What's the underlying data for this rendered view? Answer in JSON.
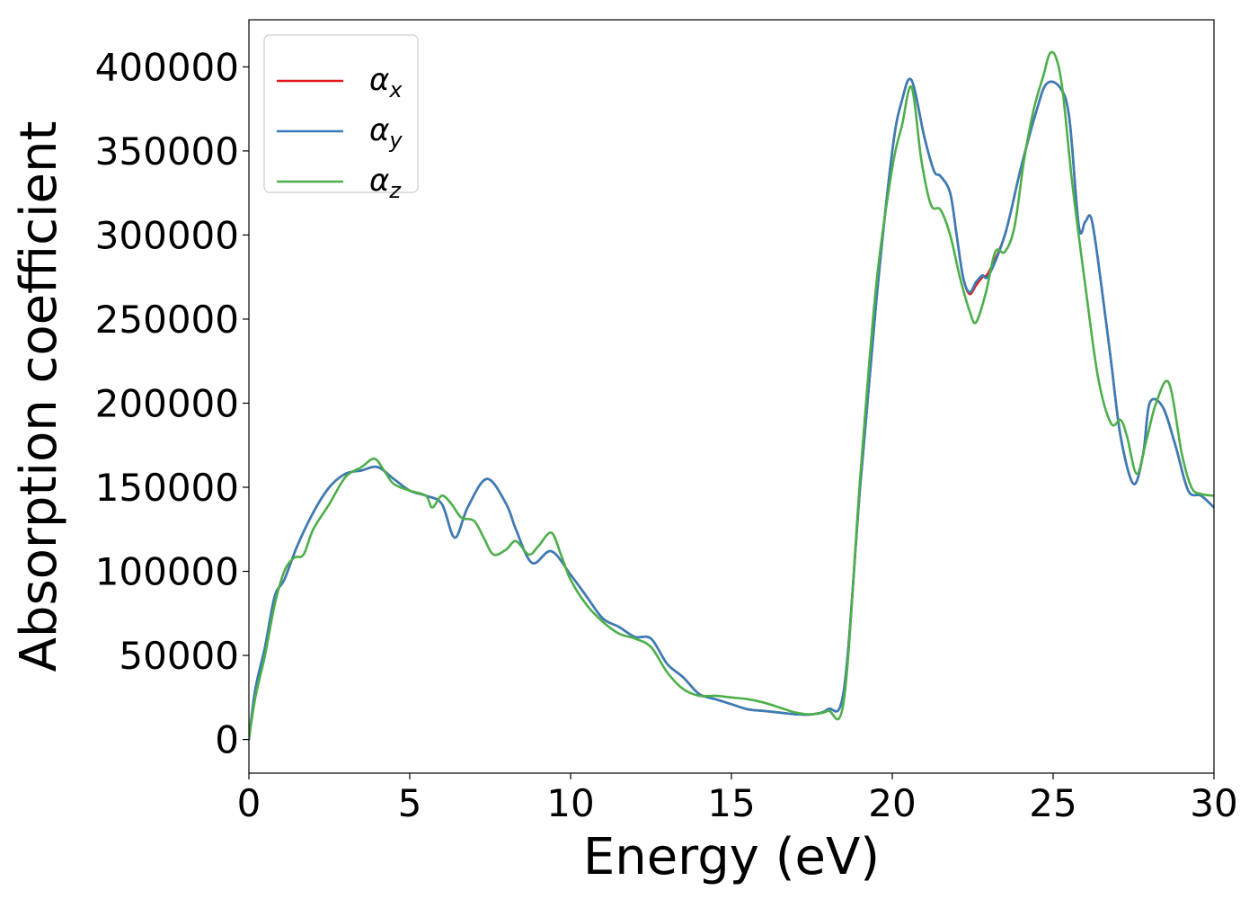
{
  "chart_data": {
    "type": "line",
    "title": "",
    "xlabel": "Energy (eV)",
    "ylabel": "Absorption coefficient",
    "xlim": [
      0,
      30
    ],
    "ylim": [
      -20000,
      428000
    ],
    "xticks": [
      0,
      5,
      10,
      15,
      20,
      25,
      30
    ],
    "xtick_labels": [
      "0",
      "5",
      "10",
      "15",
      "20",
      "25",
      "30"
    ],
    "yticks": [
      0,
      50000,
      100000,
      150000,
      200000,
      250000,
      300000,
      350000,
      400000
    ],
    "ytick_labels": [
      "0",
      "50000",
      "100000",
      "150000",
      "200000",
      "250000",
      "300000",
      "350000",
      "400000"
    ],
    "grid": false,
    "legend_position": "top-left",
    "series": [
      {
        "name": "α_x",
        "label_main": "α",
        "label_sub": "x",
        "color": "#e41a1c",
        "x": [
          0,
          0.2,
          0.5,
          0.8,
          1.1,
          1.5,
          2,
          2.5,
          3,
          3.5,
          4,
          4.5,
          5,
          5.5,
          6,
          6.4,
          6.8,
          7.4,
          8,
          8.3,
          8.8,
          9.4,
          10,
          10.5,
          11,
          11.5,
          12,
          12.5,
          13,
          13.5,
          14,
          14.5,
          15,
          15.5,
          16,
          16.5,
          17,
          17.5,
          18,
          18.5,
          19,
          19.5,
          20,
          20.3,
          20.6,
          21,
          21.3,
          21.5,
          21.8,
          22,
          22.2,
          22.4,
          22.6,
          22.8,
          23,
          23.5,
          24,
          24.5,
          24.8,
          25.2,
          25.5,
          25.8,
          26,
          26.2,
          26.5,
          26.8,
          27.1,
          27.5,
          27.8,
          28,
          28.4,
          28.8,
          29.2,
          29.6,
          30
        ],
        "y": [
          0,
          30000,
          55000,
          85000,
          95000,
          115000,
          135000,
          150000,
          158000,
          160000,
          162000,
          155000,
          148000,
          145000,
          140000,
          120000,
          138000,
          155000,
          140000,
          125000,
          105000,
          112000,
          98000,
          85000,
          72000,
          67000,
          61000,
          60000,
          45000,
          37000,
          27000,
          24000,
          21000,
          18000,
          17000,
          16000,
          15000,
          15000,
          18000,
          30000,
          150000,
          260000,
          350000,
          380000,
          392000,
          358000,
          338000,
          335000,
          325000,
          300000,
          275000,
          265000,
          270000,
          275000,
          278000,
          300000,
          340000,
          375000,
          390000,
          388000,
          370000,
          305000,
          308000,
          309000,
          270000,
          225000,
          180000,
          152000,
          170000,
          200000,
          198000,
          175000,
          148000,
          145000,
          138000
        ]
      },
      {
        "name": "α_y",
        "label_main": "α",
        "label_sub": "y",
        "color": "#377eb8",
        "x": [
          0,
          0.2,
          0.5,
          0.8,
          1.1,
          1.5,
          2,
          2.5,
          3,
          3.5,
          4,
          4.5,
          5,
          5.5,
          6,
          6.4,
          6.8,
          7.4,
          8,
          8.3,
          8.8,
          9.4,
          10,
          10.5,
          11,
          11.5,
          12,
          12.5,
          13,
          13.5,
          14,
          14.5,
          15,
          15.5,
          16,
          16.5,
          17,
          17.5,
          18,
          18.5,
          19,
          19.5,
          20,
          20.3,
          20.6,
          21,
          21.3,
          21.5,
          21.8,
          22,
          22.2,
          22.4,
          22.6,
          22.8,
          23,
          23.5,
          24,
          24.5,
          24.8,
          25.2,
          25.5,
          25.8,
          26,
          26.2,
          26.5,
          26.8,
          27.1,
          27.5,
          27.8,
          28,
          28.4,
          28.8,
          29.2,
          29.6,
          30
        ],
        "y": [
          0,
          30000,
          55000,
          85000,
          95000,
          115000,
          135000,
          150000,
          158000,
          160000,
          162000,
          155000,
          148000,
          145000,
          140000,
          120000,
          138000,
          155000,
          140000,
          125000,
          105000,
          112000,
          98000,
          85000,
          72000,
          67000,
          61000,
          60000,
          45000,
          37000,
          27000,
          24000,
          21000,
          18000,
          17000,
          16000,
          15000,
          15000,
          18000,
          30000,
          150000,
          260000,
          350000,
          380000,
          392000,
          358000,
          338000,
          335000,
          325000,
          300000,
          275000,
          266000,
          272000,
          276000,
          276000,
          300000,
          340000,
          375000,
          390000,
          388000,
          370000,
          305000,
          308000,
          309000,
          270000,
          225000,
          180000,
          152000,
          170000,
          200000,
          198000,
          175000,
          148000,
          145000,
          138000
        ]
      },
      {
        "name": "α_z",
        "label_main": "α",
        "label_sub": "z",
        "color": "#4daf4a",
        "x": [
          0,
          0.2,
          0.5,
          0.8,
          1.1,
          1.4,
          1.7,
          2,
          2.5,
          3,
          3.5,
          3.9,
          4.2,
          4.5,
          5,
          5.5,
          5.7,
          6,
          6.3,
          6.6,
          7,
          7.3,
          7.6,
          8,
          8.3,
          8.7,
          9,
          9.4,
          9.7,
          10,
          10.5,
          11,
          11.5,
          12,
          12.5,
          13,
          13.5,
          14,
          14.5,
          15,
          15.5,
          16,
          16.5,
          17,
          17.5,
          18,
          18.5,
          19,
          19.5,
          20,
          20.3,
          20.6,
          20.9,
          21.2,
          21.5,
          21.8,
          22.1,
          22.4,
          22.6,
          22.9,
          23.2,
          23.5,
          23.8,
          24.1,
          24.4,
          24.7,
          24.9,
          25.1,
          25.3,
          25.6,
          26,
          26.4,
          26.8,
          27.1,
          27.3,
          27.6,
          27.9,
          28.2,
          28.6,
          29,
          29.3,
          29.6,
          30
        ],
        "y": [
          0,
          25000,
          50000,
          80000,
          100000,
          108000,
          110000,
          125000,
          140000,
          156000,
          162000,
          167000,
          160000,
          152000,
          148000,
          145000,
          138000,
          145000,
          140000,
          132000,
          130000,
          120000,
          110000,
          113000,
          118000,
          110000,
          115000,
          123000,
          110000,
          95000,
          80000,
          70000,
          63000,
          60000,
          55000,
          40000,
          30000,
          26000,
          26000,
          25000,
          24000,
          22000,
          19000,
          16000,
          15000,
          17000,
          24000,
          155000,
          270000,
          340000,
          365000,
          388000,
          345000,
          318000,
          315000,
          300000,
          275000,
          255000,
          248000,
          265000,
          290000,
          290000,
          305000,
          345000,
          375000,
          395000,
          408000,
          405000,
          385000,
          330000,
          270000,
          215000,
          188000,
          190000,
          180000,
          158000,
          178000,
          200000,
          212000,
          170000,
          150000,
          146000,
          145000
        ]
      }
    ]
  }
}
